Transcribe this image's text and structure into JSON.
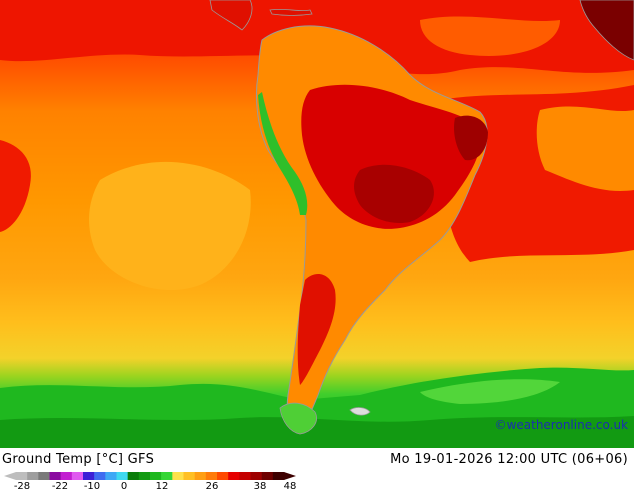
{
  "map": {
    "title": "Ground Temp [°C] GFS",
    "run_info": "Mo 19-01-2026 12:00 UTC (06+06)",
    "credit": "©weatheronline.co.uk"
  },
  "legend": {
    "ticks": [
      "-28",
      "-22",
      "-10",
      "0",
      "12",
      "26",
      "38",
      "48"
    ],
    "colors": [
      "#bdbdbd",
      "#9e9e9e",
      "#7a7a7a",
      "#8a0aa0",
      "#c21fd1",
      "#e05af0",
      "#3c1fd6",
      "#3f6cf0",
      "#3fa8f5",
      "#3fd9f0",
      "#0a7d0a",
      "#129a12",
      "#1fb81f",
      "#36d636",
      "#ffe14a",
      "#ffc024",
      "#ff9f14",
      "#ff7c0a",
      "#ff4a00",
      "#e60000",
      "#c40000",
      "#9e0000",
      "#6e0000",
      "#3d0000"
    ]
  },
  "colors": {
    "ocean_warm": "#ff8c00",
    "ocean_hot": "#f01200",
    "land_hot": "#d40000",
    "cool_green": "#22c022",
    "coast_gray": "#9a9a9a"
  }
}
